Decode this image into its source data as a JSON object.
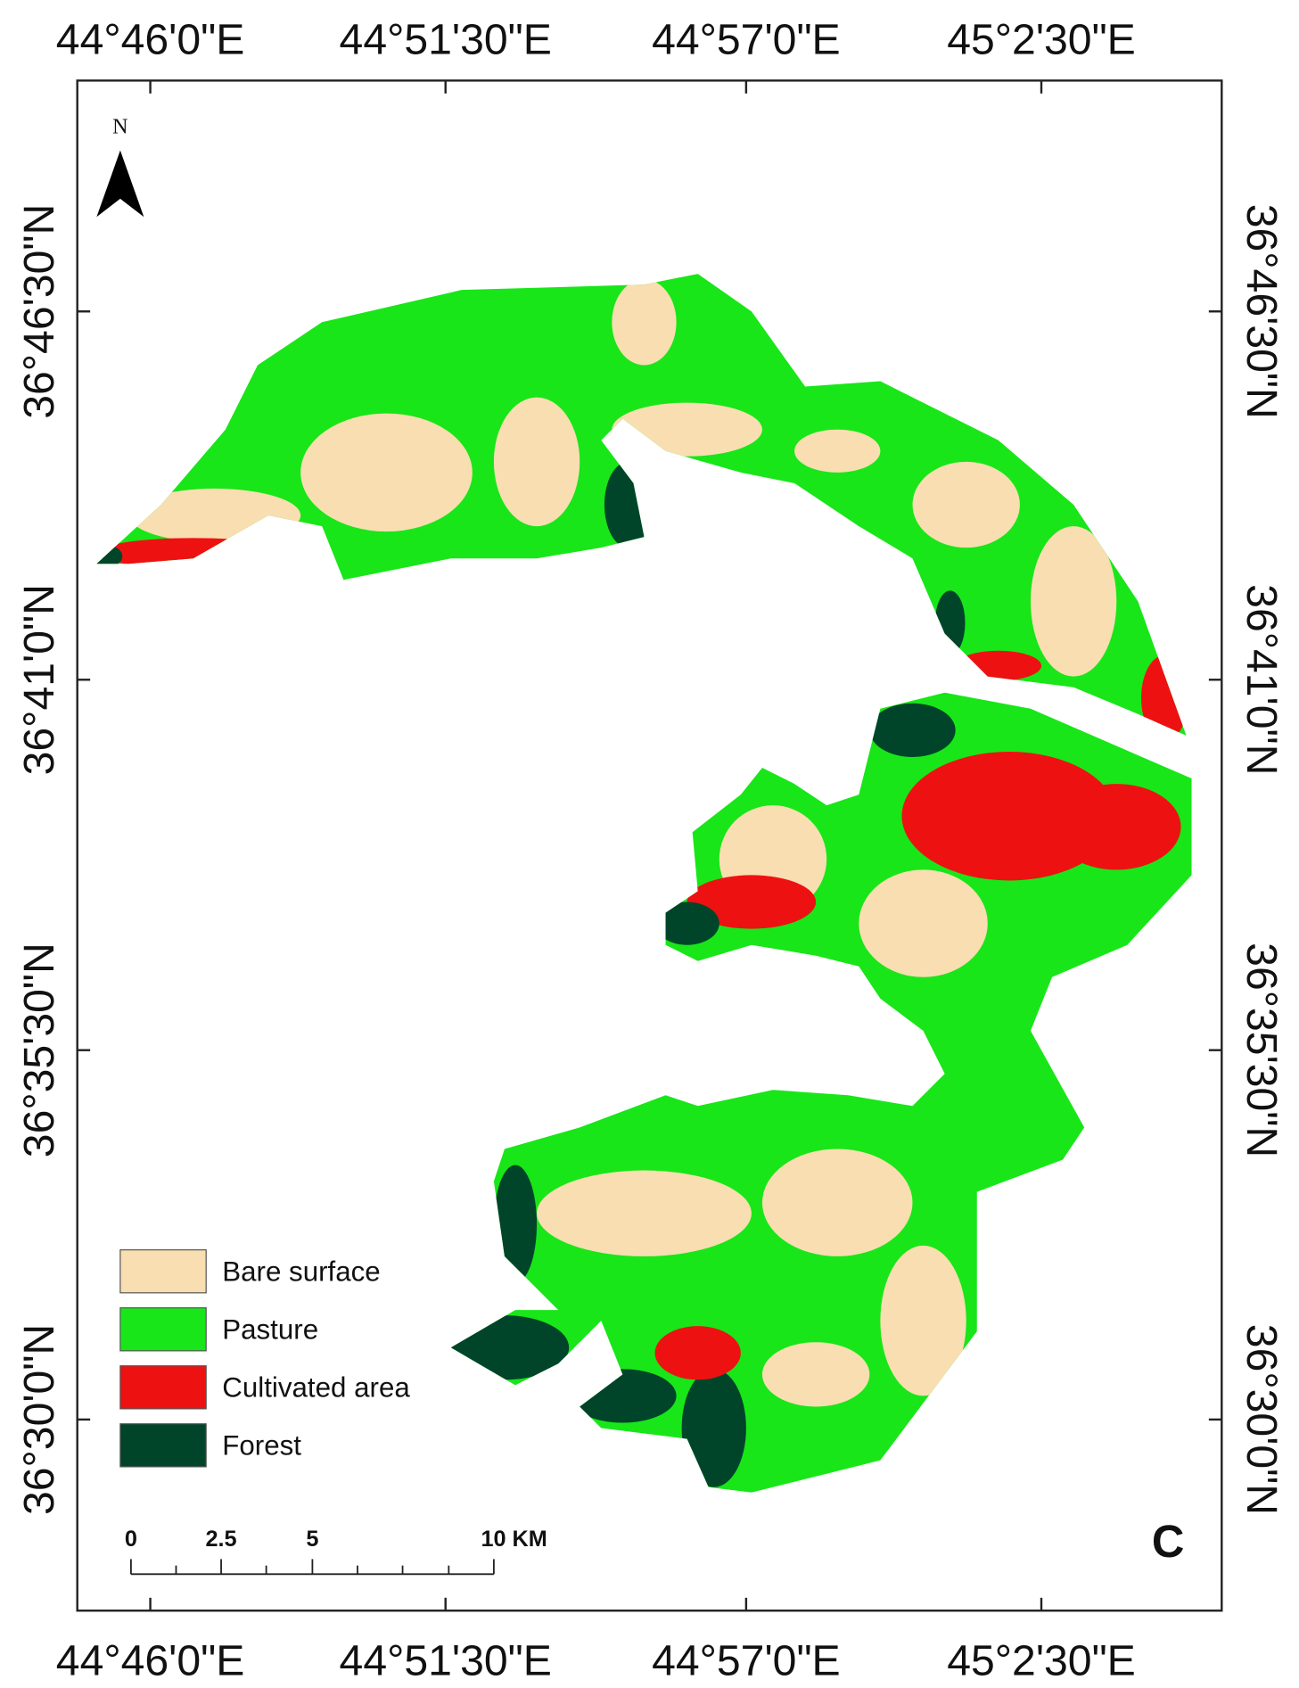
{
  "map": {
    "longitude_ticks": [
      "44°46'0\"E",
      "44°51'30\"E",
      "44°57'0\"E",
      "45°2'30\"E"
    ],
    "latitude_ticks": [
      "36°46'30\"N",
      "36°41'0\"N",
      "36°35'30\"N",
      "36°30'0\"N"
    ],
    "north_label": "N",
    "panel_label": "C",
    "legend": [
      {
        "label": "Bare surface",
        "color": "#f8deb0"
      },
      {
        "label": "Pasture",
        "color": "#18e618"
      },
      {
        "label": "Cultivated area",
        "color": "#ee1111"
      },
      {
        "label": "Forest",
        "color": "#00452a"
      }
    ],
    "scale_bar": [
      "0",
      "2.5",
      "5",
      "10 KM"
    ]
  }
}
